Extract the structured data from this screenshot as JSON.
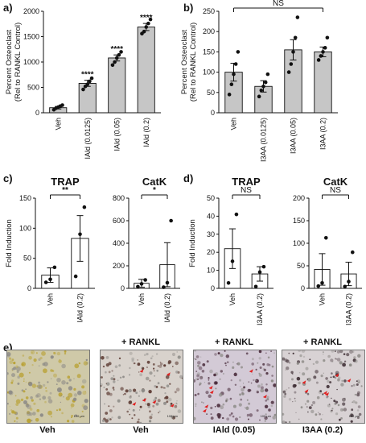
{
  "panels": {
    "a": "a)",
    "b": "b)",
    "c": "c)",
    "d": "d)",
    "e": "e)"
  },
  "chart_data": [
    {
      "id": "a",
      "type": "bar",
      "categories": [
        "Veh",
        "IAld (0.0125)",
        "IAld (0.05)",
        "IAld (0.2)"
      ],
      "values": [
        100,
        580,
        1080,
        1690
      ],
      "errors": [
        25,
        60,
        60,
        70
      ],
      "points": [
        [
          60,
          90,
          110,
          130,
          150
        ],
        [
          460,
          520,
          560,
          620,
          680
        ],
        [
          940,
          1000,
          1080,
          1140,
          1200
        ],
        [
          1560,
          1600,
          1690,
          1760,
          1840
        ]
      ],
      "sig": [
        "",
        "****",
        "****",
        "****"
      ],
      "ylabel": "Percent Osteoclast\n(Rel to RANKL Control)",
      "ylim": [
        0,
        2000
      ],
      "yticks": [
        0,
        500,
        1000,
        1500,
        2000
      ],
      "bar_color": "#c6c6c6"
    },
    {
      "id": "b",
      "type": "bar",
      "categories": [
        "Veh",
        "I3AA (0.0125)",
        "I3AA (0.05)",
        "I3AA (0.2)"
      ],
      "values": [
        100,
        65,
        155,
        150
      ],
      "errors": [
        22,
        14,
        25,
        12
      ],
      "points": [
        [
          45,
          70,
          95,
          120,
          150
        ],
        [
          40,
          55,
          65,
          75,
          95
        ],
        [
          100,
          120,
          150,
          185,
          235
        ],
        [
          130,
          140,
          150,
          160,
          185
        ]
      ],
      "bracket": {
        "from": 0,
        "to": 3,
        "label": "NS"
      },
      "ylabel": "Percent Osteoclast\n(Rel to RANKL Control)",
      "ylim": [
        0,
        250
      ],
      "yticks": [
        0,
        50,
        100,
        150,
        200,
        250
      ],
      "bar_color": "#c6c6c6"
    },
    {
      "id": "c1",
      "type": "bar",
      "title": "TRAP",
      "categories": [
        "Veh",
        "IAld (0.2)"
      ],
      "values": [
        22,
        83
      ],
      "errors": [
        12,
        38
      ],
      "points": [
        [
          10,
          15,
          35
        ],
        [
          20,
          90,
          135
        ]
      ],
      "bracket": {
        "from": 0,
        "to": 1,
        "label": "**"
      },
      "ylabel": "Fold Induction",
      "ylim": [
        0,
        150
      ],
      "yticks": [
        0,
        50,
        100,
        150
      ],
      "bar_color": "#ffffff"
    },
    {
      "id": "c2",
      "type": "bar",
      "title": "CatK",
      "categories": [
        "Veh",
        "IAld (0.2)"
      ],
      "values": [
        45,
        210
      ],
      "errors": [
        35,
        195
      ],
      "points": [
        [
          15,
          40,
          75
        ],
        [
          10,
          50,
          600
        ]
      ],
      "bracket": {
        "from": 0,
        "to": 1,
        "label": "*"
      },
      "ylabel": "",
      "ylim": [
        0,
        800
      ],
      "yticks": [
        0,
        200,
        400,
        600,
        800
      ],
      "bar_color": "#ffffff"
    },
    {
      "id": "d1",
      "type": "bar",
      "title": "TRAP",
      "categories": [
        "Veh",
        "I3AA (0.2)"
      ],
      "values": [
        22,
        8
      ],
      "errors": [
        11,
        4
      ],
      "points": [
        [
          3,
          15,
          41
        ],
        [
          1,
          9,
          12
        ]
      ],
      "bracket": {
        "from": 0,
        "to": 1,
        "label": "NS"
      },
      "ylabel": "Fold Induction",
      "ylim": [
        0,
        50
      ],
      "yticks": [
        0,
        10,
        20,
        30,
        40,
        50
      ],
      "bar_color": "#ffffff"
    },
    {
      "id": "d2",
      "type": "bar",
      "title": "CatK",
      "categories": [
        "Veh",
        "I3AA (0.2)"
      ],
      "values": [
        42,
        32
      ],
      "errors": [
        35,
        26
      ],
      "points": [
        [
          5,
          12,
          112
        ],
        [
          4,
          15,
          80
        ]
      ],
      "bracket": {
        "from": 0,
        "to": 1,
        "label": "NS"
      },
      "ylabel": "",
      "ylim": [
        0,
        200
      ],
      "yticks": [
        0,
        50,
        100,
        150,
        200
      ],
      "bar_color": "#ffffff"
    }
  ],
  "micrographs": [
    {
      "header": "",
      "label": "Veh",
      "scale": "100 µm",
      "tone": "#cfc9a8",
      "stain": "#b8a030"
    },
    {
      "header": "+ RANKL",
      "label": "Veh",
      "scale": "100 µm",
      "tone": "#d8d2cc",
      "stain": "#5a3830"
    },
    {
      "header": "+ RANKL",
      "label": "IAld (0.05)",
      "scale": "100 µm",
      "tone": "#d3cad6",
      "stain": "#4a2c3c"
    },
    {
      "header": "+ RANKL",
      "label": "I3AA (0.2)",
      "scale": "100 µm",
      "tone": "#d8d2d4",
      "stain": "#3e2e34"
    }
  ]
}
